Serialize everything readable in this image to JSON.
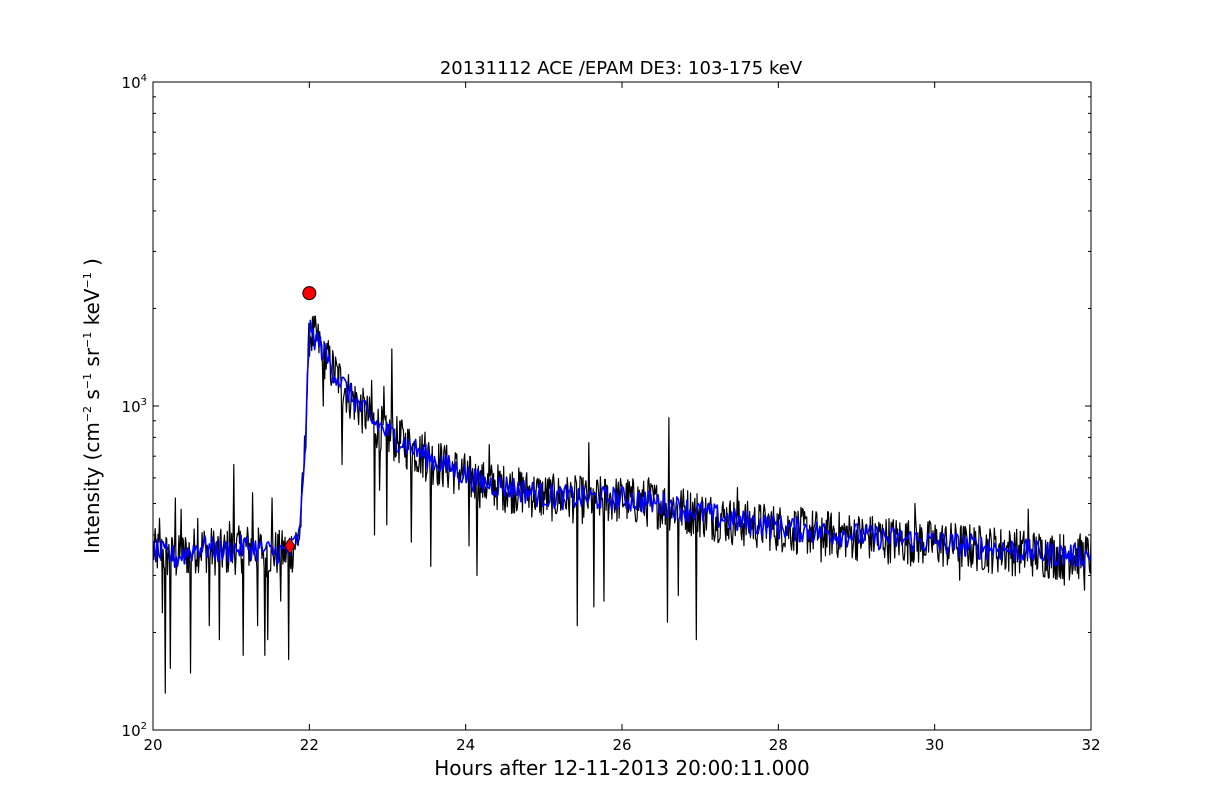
{
  "chart_data": {
    "type": "line",
    "title": "20131112 ACE /EPAM DE3: 103-175 keV",
    "xlabel": "Hours after 12-11-2013 20:00:11.000",
    "ylabel": {
      "prefix": "Intensity (cm",
      "exp1": "−2",
      "mid1": " s",
      "exp2": "−1",
      "mid2": " sr",
      "exp3": "−1",
      "mid3": " keV",
      "exp4": "−1",
      "suffix": " )"
    },
    "xlim": [
      20,
      32
    ],
    "ylim": [
      100,
      10000
    ],
    "yscale": "log",
    "grid": false,
    "x_ticks": [
      20,
      22,
      24,
      26,
      28,
      30,
      32
    ],
    "x_tick_labels": [
      "20",
      "22",
      "24",
      "26",
      "28",
      "30",
      "32"
    ],
    "y_ticks": [
      {
        "base": "10",
        "exp": "2",
        "value": 100
      },
      {
        "base": "10",
        "exp": "3",
        "value": 1000
      },
      {
        "base": "10",
        "exp": "4",
        "value": 10000
      }
    ],
    "series": [
      {
        "color": "#000000",
        "style": "raw",
        "anchors": [
          [
            20.0,
            360
          ],
          [
            20.3,
            340
          ],
          [
            20.6,
            370
          ],
          [
            20.9,
            355
          ],
          [
            21.2,
            370
          ],
          [
            21.5,
            355
          ],
          [
            21.75,
            355
          ],
          [
            21.88,
            400
          ],
          [
            21.95,
            800
          ],
          [
            22.0,
            1700
          ],
          [
            22.1,
            1600
          ],
          [
            22.3,
            1300
          ],
          [
            22.5,
            1100
          ],
          [
            22.8,
            900
          ],
          [
            23.1,
            800
          ],
          [
            23.5,
            700
          ],
          [
            23.9,
            630
          ],
          [
            24.2,
            580
          ],
          [
            24.6,
            560
          ],
          [
            25.0,
            530
          ],
          [
            25.5,
            520
          ],
          [
            26.0,
            520
          ],
          [
            26.5,
            500
          ],
          [
            27.0,
            470
          ],
          [
            27.5,
            440
          ],
          [
            28.0,
            425
          ],
          [
            28.5,
            410
          ],
          [
            29.0,
            400
          ],
          [
            29.5,
            390
          ],
          [
            30.0,
            380
          ],
          [
            30.5,
            370
          ],
          [
            31.0,
            360
          ],
          [
            31.5,
            350
          ],
          [
            32.0,
            345
          ]
        ],
        "spikes": [
          [
            20.08,
            450
          ],
          [
            20.12,
            230
          ],
          [
            20.16,
            130
          ],
          [
            20.22,
            155
          ],
          [
            20.29,
            520
          ],
          [
            20.36,
            480
          ],
          [
            20.48,
            150
          ],
          [
            20.57,
            450
          ],
          [
            20.72,
            210
          ],
          [
            20.85,
            190
          ],
          [
            20.98,
            440
          ],
          [
            21.03,
            660
          ],
          [
            21.15,
            170
          ],
          [
            21.27,
            540
          ],
          [
            21.34,
            210
          ],
          [
            21.43,
            170
          ],
          [
            21.47,
            190
          ],
          [
            21.52,
            520
          ],
          [
            21.63,
            250
          ],
          [
            21.74,
            165
          ],
          [
            22.18,
            1000
          ],
          [
            22.22,
            1300
          ],
          [
            22.42,
            660
          ],
          [
            22.6,
            1100
          ],
          [
            22.8,
            1200
          ],
          [
            22.83,
            400
          ],
          [
            22.9,
            550
          ],
          [
            22.95,
            1150
          ],
          [
            22.99,
            430
          ],
          [
            23.06,
            1500
          ],
          [
            23.18,
            900
          ],
          [
            23.3,
            380
          ],
          [
            23.48,
            830
          ],
          [
            23.55,
            320
          ],
          [
            23.72,
            720
          ],
          [
            24.04,
            370
          ],
          [
            24.14,
            300
          ],
          [
            24.3,
            760
          ],
          [
            25.43,
            210
          ],
          [
            25.58,
            770
          ],
          [
            25.64,
            240
          ],
          [
            25.77,
            250
          ],
          [
            26.34,
            600
          ],
          [
            26.58,
            215
          ],
          [
            26.6,
            920
          ],
          [
            26.72,
            260
          ],
          [
            26.95,
            190
          ],
          [
            27.48,
            560
          ],
          [
            28.22,
            470
          ],
          [
            28.55,
            330
          ],
          [
            29.75,
            500
          ],
          [
            30.32,
            290
          ],
          [
            31.2,
            480
          ],
          [
            31.66,
            280
          ],
          [
            31.92,
            270
          ]
        ]
      },
      {
        "color": "#0000ff",
        "style": "smoothed",
        "anchors": [
          [
            20.0,
            360
          ],
          [
            20.3,
            340
          ],
          [
            20.6,
            370
          ],
          [
            20.9,
            355
          ],
          [
            21.2,
            370
          ],
          [
            21.5,
            355
          ],
          [
            21.75,
            355
          ],
          [
            21.88,
            400
          ],
          [
            21.95,
            800
          ],
          [
            22.0,
            1700
          ],
          [
            22.1,
            1600
          ],
          [
            22.3,
            1300
          ],
          [
            22.5,
            1100
          ],
          [
            22.8,
            900
          ],
          [
            23.1,
            800
          ],
          [
            23.5,
            700
          ],
          [
            23.9,
            630
          ],
          [
            24.2,
            580
          ],
          [
            24.6,
            560
          ],
          [
            25.0,
            530
          ],
          [
            25.5,
            520
          ],
          [
            26.0,
            520
          ],
          [
            26.5,
            500
          ],
          [
            27.0,
            470
          ],
          [
            27.5,
            440
          ],
          [
            28.0,
            425
          ],
          [
            28.5,
            410
          ],
          [
            29.0,
            400
          ],
          [
            29.5,
            390
          ],
          [
            30.0,
            380
          ],
          [
            30.5,
            370
          ],
          [
            31.0,
            360
          ],
          [
            31.5,
            350
          ],
          [
            32.0,
            345
          ]
        ]
      }
    ],
    "markers": [
      {
        "shape": "circle",
        "x": 22.0,
        "y": 2230,
        "color": "#ff0000"
      },
      {
        "shape": "diamond",
        "x": 21.75,
        "y": 370,
        "color": "#ff0000"
      }
    ]
  }
}
